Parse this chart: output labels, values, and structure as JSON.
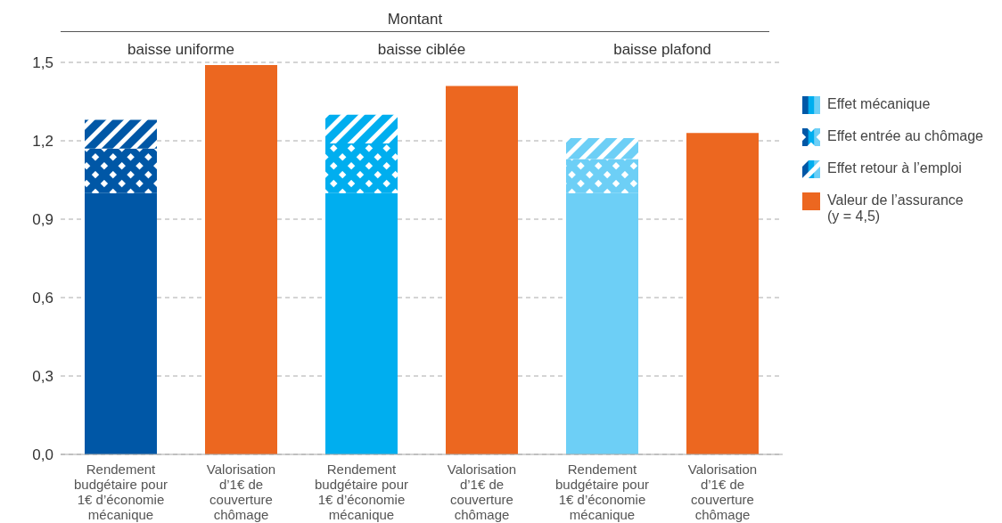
{
  "chart_data": {
    "type": "bar",
    "stacked": true,
    "annotations": [
      "Montant",
      "baisse uniforme",
      "baisse ciblée",
      "baisse plafond"
    ],
    "categories": [
      "Rendement budgétaire pour 1€ d’économie mécanique",
      "Valorisation d’1€ de couverture chômage",
      "Rendement budgétaire pour 1€ d’économie mécanique",
      "Valorisation d’1€ de couverture chômage",
      "Rendement budgétaire pour 1€ d’économie mécanique",
      "Valorisation d’1€ de couverture chômage"
    ],
    "series": [
      {
        "name": "Effet mécanique",
        "colors": [
          "#0057a6",
          null,
          "#00aeef",
          null,
          "#6dcff6",
          null
        ],
        "values": [
          1.0,
          null,
          1.0,
          null,
          1.0,
          null
        ]
      },
      {
        "name": "Effet entrée au chômage",
        "colors": [
          "#0057a6",
          null,
          "#00aeef",
          null,
          "#6dcff6",
          null
        ],
        "values": [
          0.17,
          null,
          0.19,
          null,
          0.13,
          null
        ]
      },
      {
        "name": "Effet retour à l’emploi",
        "colors": [
          "#0057a6",
          null,
          "#00aeef",
          null,
          "#6dcff6",
          null
        ],
        "values": [
          0.11,
          null,
          0.11,
          null,
          0.08,
          null
        ]
      },
      {
        "name": "Valeur de l’assurance (y = 4,5)",
        "color": "#ec6720",
        "values": [
          null,
          1.49,
          null,
          1.41,
          null,
          1.23
        ]
      }
    ],
    "ylim": [
      0,
      1.5
    ],
    "yticks": [
      {
        "value": 0,
        "label": "0,0"
      },
      {
        "value": 0.3,
        "label": "0,3"
      },
      {
        "value": 0.6,
        "label": "0,6"
      },
      {
        "value": 0.9,
        "label": "0,9"
      },
      {
        "value": 1.2,
        "label": "1,2"
      },
      {
        "value": 1.5,
        "label": "1,5"
      }
    ],
    "grid": "y",
    "legend": "right"
  }
}
